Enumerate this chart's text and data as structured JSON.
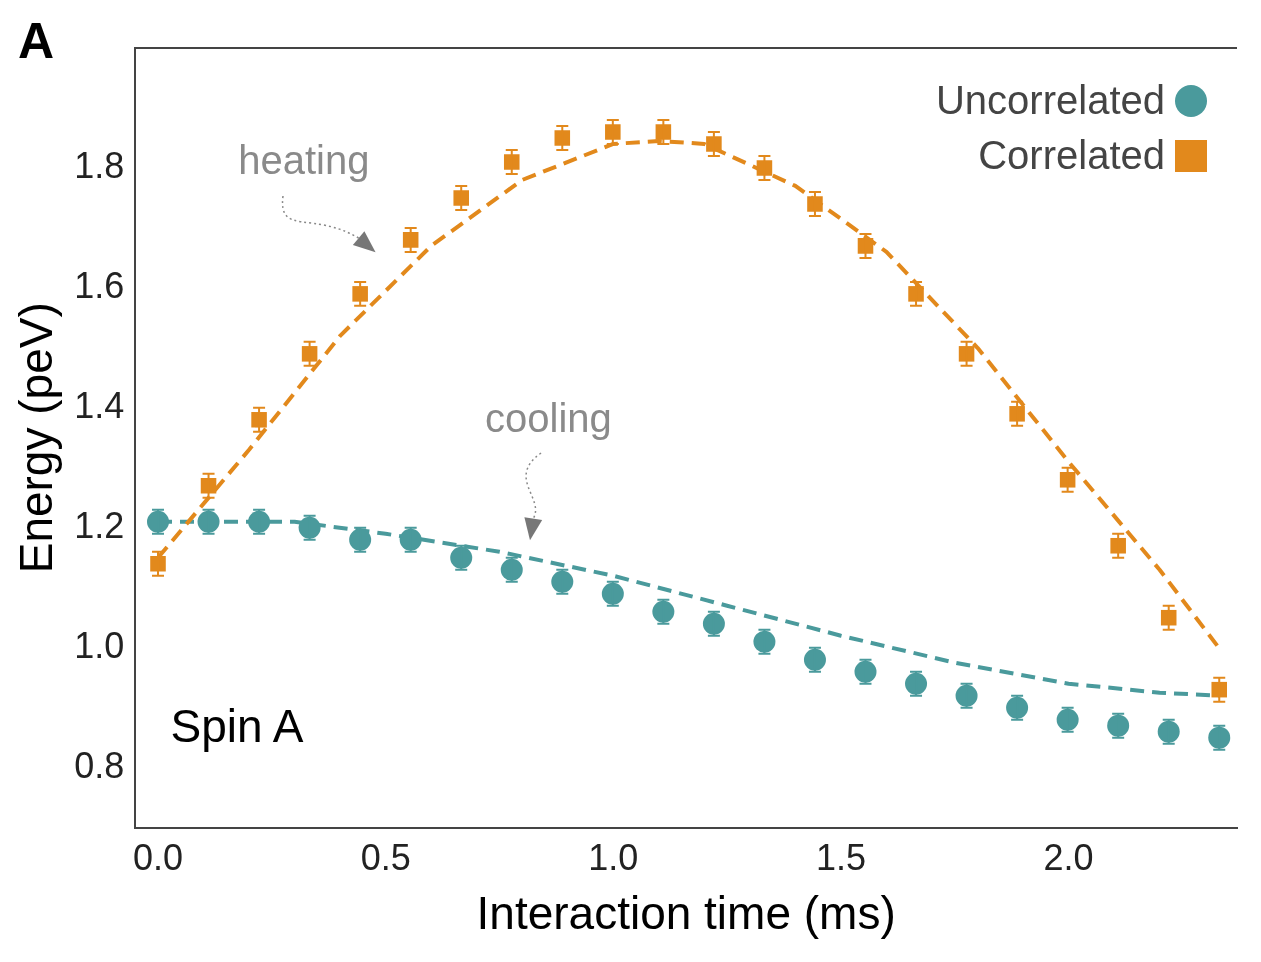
{
  "chart_data": {
    "type": "scatter",
    "xlabel": "Interaction time (ms)",
    "ylabel": "Energy (peV)",
    "x": [
      0,
      0.111,
      0.222,
      0.333,
      0.444,
      0.555,
      0.666,
      0.777,
      0.888,
      0.999,
      1.11,
      1.221,
      1.332,
      1.443,
      1.554,
      1.665,
      1.776,
      1.887,
      1.998,
      2.109,
      2.22,
      2.331
    ],
    "series": [
      {
        "name": "Uncorrelated",
        "color": "#4a9a9c",
        "marker": "circle",
        "values": [
          1.21,
          1.21,
          1.21,
          1.2,
          1.18,
          1.18,
          1.15,
          1.13,
          1.11,
          1.09,
          1.06,
          1.04,
          1.01,
          0.98,
          0.96,
          0.94,
          0.92,
          0.9,
          0.88,
          0.87,
          0.86,
          0.85
        ],
        "errors": [
          0.02,
          0.02,
          0.02,
          0.02,
          0.02,
          0.02,
          0.02,
          0.02,
          0.02,
          0.02,
          0.02,
          0.02,
          0.02,
          0.02,
          0.02,
          0.02,
          0.02,
          0.02,
          0.02,
          0.02,
          0.02,
          0.02
        ]
      },
      {
        "name": "Correlated",
        "color": "#e2891c",
        "marker": "square",
        "values": [
          1.14,
          1.27,
          1.38,
          1.49,
          1.59,
          1.68,
          1.75,
          1.81,
          1.85,
          1.86,
          1.86,
          1.84,
          1.8,
          1.74,
          1.67,
          1.59,
          1.49,
          1.39,
          1.28,
          1.17,
          1.05,
          0.93
        ],
        "errors": [
          0.02,
          0.02,
          0.02,
          0.02,
          0.02,
          0.02,
          0.02,
          0.02,
          0.02,
          0.02,
          0.02,
          0.02,
          0.02,
          0.02,
          0.02,
          0.02,
          0.02,
          0.02,
          0.02,
          0.02,
          0.02,
          0.02
        ]
      },
      {
        "type": "line",
        "color": "#e2891c",
        "line_style": "dashed",
        "marker": "none",
        "x": [
          0,
          0.2,
          0.4,
          0.6,
          0.8,
          1.0,
          1.1,
          1.2,
          1.4,
          1.6,
          1.8,
          2.0,
          2.2,
          2.33
        ],
        "values": [
          1.15,
          1.33,
          1.52,
          1.67,
          1.78,
          1.84,
          1.845,
          1.84,
          1.77,
          1.66,
          1.5,
          1.31,
          1.13,
          1.0
        ]
      },
      {
        "type": "line",
        "color": "#4a9a9c",
        "line_style": "dashed",
        "marker": "none",
        "x": [
          0,
          0.3,
          0.5,
          0.75,
          1.0,
          1.25,
          1.5,
          1.75,
          2.0,
          2.2,
          2.33
        ],
        "values": [
          1.21,
          1.21,
          1.19,
          1.16,
          1.12,
          1.07,
          1.02,
          0.975,
          0.94,
          0.925,
          0.92
        ]
      }
    ],
    "xlim": [
      -0.05,
      2.37
    ],
    "xticks": [
      {
        "value": 0,
        "label": "0.0"
      },
      0.5,
      {
        "value": 1,
        "label": "1.0"
      },
      1.5,
      {
        "value": 2,
        "label": "2.0"
      }
    ],
    "ylim": [
      0.7,
      2.0
    ],
    "yticks": [
      0.8,
      {
        "value": 1,
        "label": "1.0"
      },
      1.2,
      1.4,
      1.6,
      1.8
    ],
    "grid": false,
    "legend": "top right",
    "annotations": [
      "A",
      "Spin A",
      "heating",
      "cooling"
    ]
  }
}
